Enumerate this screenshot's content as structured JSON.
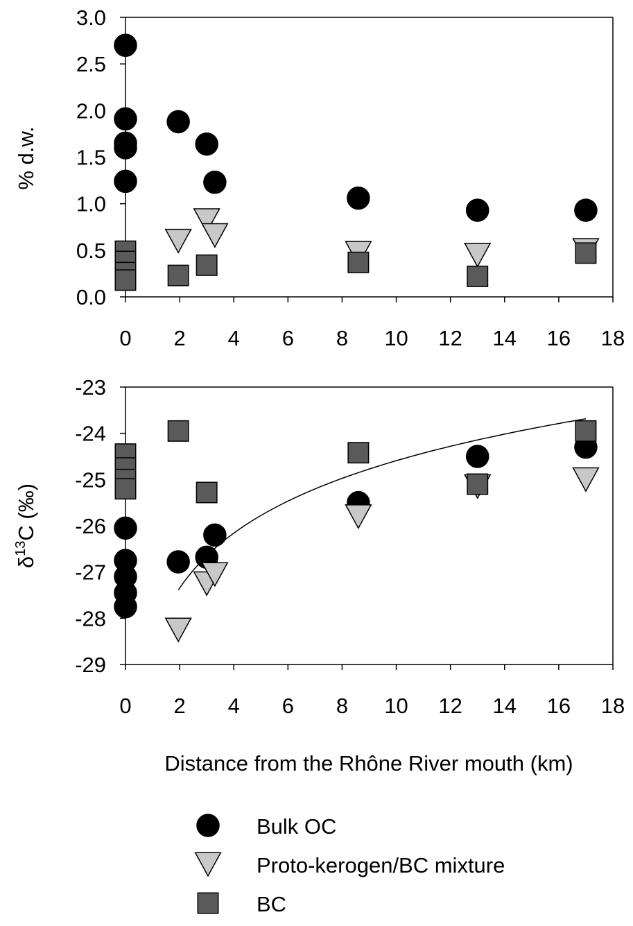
{
  "colors": {
    "bulk_oc": "#000000",
    "proto_kerogen_bc": "#c8c8c8",
    "bc": "#5a5a5a",
    "marker_edge": "#000000",
    "axis": "#000000",
    "fit_line": "#000000"
  },
  "chart_data": [
    {
      "type": "scatter",
      "panel": "top",
      "ylabel": "% d.w.",
      "xlabel": "",
      "xlim": [
        0,
        18
      ],
      "ylim": [
        0.0,
        3.0
      ],
      "xticks": [
        "0",
        "2",
        "4",
        "6",
        "8",
        "10",
        "12",
        "14",
        "16",
        "18"
      ],
      "yticks": [
        "0.0",
        "0.5",
        "1.0",
        "1.5",
        "2.0",
        "2.5",
        "3.0"
      ],
      "grid": false,
      "series": [
        {
          "name": "Bulk OC",
          "marker": "circle",
          "points": [
            [
              0,
              2.7
            ],
            [
              0,
              1.91
            ],
            [
              0,
              1.65
            ],
            [
              0,
              1.6
            ],
            [
              0,
              1.24
            ],
            [
              1.95,
              1.88
            ],
            [
              3.0,
              1.64
            ],
            [
              3.3,
              1.23
            ],
            [
              8.6,
              1.06
            ],
            [
              13.0,
              0.93
            ],
            [
              17.0,
              0.93
            ]
          ]
        },
        {
          "name": "Proto-kerogen/BC mixture",
          "marker": "triangle-down",
          "points": [
            [
              1.95,
              0.6
            ],
            [
              3.0,
              0.82
            ],
            [
              3.3,
              0.66
            ],
            [
              8.6,
              0.47
            ],
            [
              13.0,
              0.45
            ],
            [
              17.0,
              0.5
            ]
          ]
        },
        {
          "name": "BC",
          "marker": "square",
          "points": [
            [
              0,
              0.49
            ],
            [
              0,
              0.38
            ],
            [
              0,
              0.26
            ],
            [
              0,
              0.18
            ],
            [
              1.95,
              0.23
            ],
            [
              3.0,
              0.34
            ],
            [
              8.6,
              0.37
            ],
            [
              13.0,
              0.22
            ],
            [
              17.0,
              0.47
            ]
          ]
        }
      ]
    },
    {
      "type": "scatter",
      "panel": "bottom",
      "ylabel": "δ13C (‰)",
      "xlabel": "Distance from the Rhône River mouth (km)",
      "xlim": [
        0,
        18
      ],
      "ylim": [
        -29,
        -23
      ],
      "xticks": [
        "0",
        "2",
        "4",
        "6",
        "8",
        "10",
        "12",
        "14",
        "16",
        "18"
      ],
      "yticks": [
        "-29",
        "-28",
        "-27",
        "-26",
        "-25",
        "-24",
        "-23"
      ],
      "grid": false,
      "series": [
        {
          "name": "Bulk OC",
          "marker": "circle",
          "points": [
            [
              0,
              -26.05
            ],
            [
              0,
              -26.75
            ],
            [
              0,
              -27.1
            ],
            [
              0,
              -27.45
            ],
            [
              0,
              -27.75
            ],
            [
              1.95,
              -26.78
            ],
            [
              3.0,
              -26.68
            ],
            [
              3.3,
              -26.2
            ],
            [
              8.6,
              -25.5
            ],
            [
              13.0,
              -24.5
            ],
            [
              17.0,
              -24.3
            ]
          ]
        },
        {
          "name": "Proto-kerogen/BC mixture",
          "marker": "triangle-down",
          "points": [
            [
              1.95,
              -28.25
            ],
            [
              3.0,
              -27.25
            ],
            [
              3.3,
              -27.05
            ],
            [
              8.6,
              -25.8
            ],
            [
              13.0,
              -25.15
            ],
            [
              17.0,
              -25.0
            ]
          ]
        },
        {
          "name": "BC",
          "marker": "square",
          "points": [
            [
              0,
              -24.45
            ],
            [
              0,
              -24.75
            ],
            [
              0,
              -25.0
            ],
            [
              0,
              -25.2
            ],
            [
              1.95,
              -23.95
            ],
            [
              3.0,
              -25.28
            ],
            [
              8.6,
              -24.42
            ],
            [
              13.0,
              -25.1
            ],
            [
              17.0,
              -23.95
            ]
          ]
        }
      ],
      "fit_line": {
        "type": "logarithmic",
        "x_range": [
          1.95,
          17.0
        ],
        "a": -28.53,
        "b": 1.71
      }
    }
  ],
  "legend": {
    "placement": "bottom-center",
    "items": [
      {
        "label": "Bulk OC",
        "marker": "circle"
      },
      {
        "label": "Proto-kerogen/BC mixture",
        "marker": "triangle-down"
      },
      {
        "label": "BC",
        "marker": "square"
      }
    ]
  }
}
